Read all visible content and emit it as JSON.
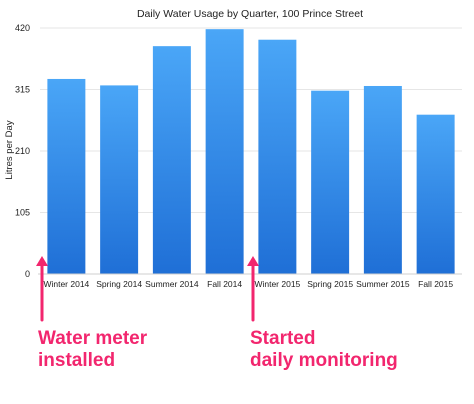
{
  "chart_data": {
    "type": "bar",
    "title": "Daily Water Usage by Quarter, 100 Prince Street",
    "xlabel": "",
    "ylabel": "Litres per Day",
    "categories": [
      "Winter 2014",
      "Spring 2014",
      "Summer 2014",
      "Fall 2014",
      "Winter 2015",
      "Spring 2015",
      "Summer 2015",
      "Fall 2015"
    ],
    "values": [
      333,
      322,
      389,
      418,
      400,
      313,
      321,
      272
    ],
    "ylim": [
      0,
      420
    ],
    "yticks": [
      0,
      105,
      210,
      315,
      420
    ],
    "grid": true,
    "bar_color_top": "#4aa6f7",
    "bar_color_bottom": "#1f6fd6",
    "annotations": [
      {
        "lines": [
          "Water meter",
          "installed"
        ],
        "category": "Winter 2014",
        "color": "#f2266e"
      },
      {
        "lines": [
          "Started",
          "daily monitoring"
        ],
        "category": "Winter 2015",
        "color": "#f2266e"
      }
    ]
  }
}
